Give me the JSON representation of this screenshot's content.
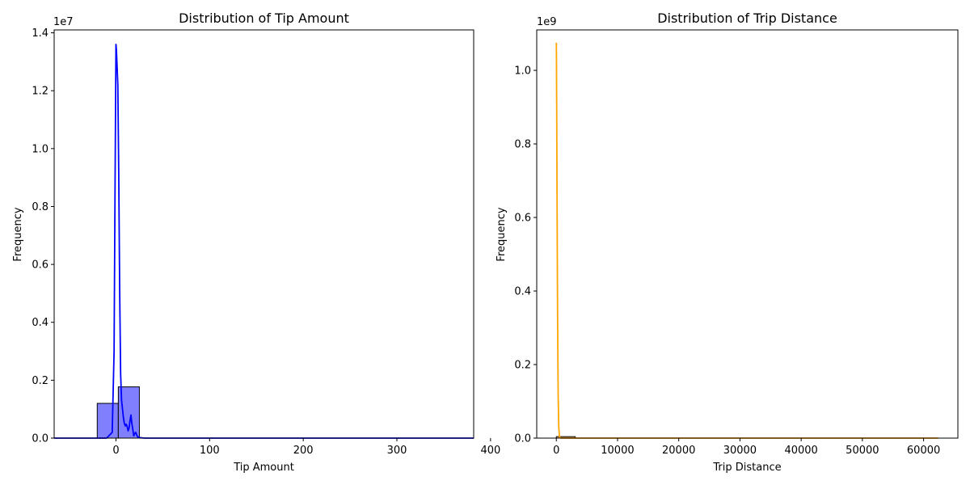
{
  "chart_data": [
    {
      "type": "histogram+kde",
      "title": "Distribution of Tip Amount",
      "xlabel": "Tip Amount",
      "ylabel": "Frequency",
      "offset_label": "1e7",
      "y_scale": 10000000,
      "xlim": [
        -66,
        382
      ],
      "ylim": [
        0,
        14100000
      ],
      "x_ticks": [
        0,
        100,
        200,
        300,
        400
      ],
      "x_tick_labels": [
        "0",
        "100",
        "200",
        "300",
        "400"
      ],
      "y_ticks": [
        0,
        2000000,
        4000000,
        6000000,
        8000000,
        10000000,
        12000000,
        14000000
      ],
      "y_tick_labels": [
        "0.0",
        "0.2",
        "0.4",
        "0.6",
        "0.8",
        "1.0",
        "1.2",
        "1.4"
      ],
      "colors": {
        "bar_fill": "#8080ff",
        "bar_edge": "#000000",
        "kde": "#0000ff"
      },
      "bars": [
        {
          "x0": -66,
          "x1": -20,
          "value": 0
        },
        {
          "x0": -20,
          "x1": 2.5,
          "value": 1200000
        },
        {
          "x0": 2.5,
          "x1": 25,
          "value": 1770000
        },
        {
          "x0": 25,
          "x1": 382,
          "value": 0
        }
      ],
      "kde": {
        "x": [
          -66,
          -10,
          -4,
          -2,
          -1,
          0,
          0.5,
          1,
          1.5,
          2,
          3,
          4,
          5,
          6,
          7,
          8,
          9,
          10,
          11,
          12,
          13,
          14,
          15,
          16,
          17,
          18,
          19,
          20,
          21,
          22,
          23,
          25,
          30,
          40,
          100,
          200,
          300,
          382
        ],
        "y": [
          0,
          0,
          200000,
          3000000,
          8500000,
          13600000,
          13400000,
          13000000,
          12600000,
          12200000,
          9000000,
          5000000,
          2200000,
          1300000,
          1000000,
          700000,
          500000,
          420000,
          480000,
          400000,
          250000,
          350000,
          600000,
          800000,
          500000,
          300000,
          80000,
          150000,
          200000,
          120000,
          50000,
          20000,
          0,
          0,
          0,
          0,
          0,
          0
        ]
      }
    },
    {
      "type": "histogram+kde",
      "title": "Distribution of Trip Distance",
      "xlabel": "Trip Distance",
      "ylabel": "Frequency",
      "offset_label": "1e9",
      "y_scale": 1000000000,
      "xlim": [
        -3200,
        65600
      ],
      "ylim": [
        0,
        1110000000
      ],
      "x_ticks": [
        0,
        10000,
        20000,
        30000,
        40000,
        50000,
        60000
      ],
      "x_tick_labels": [
        "0",
        "10000",
        "20000",
        "30000",
        "40000",
        "50000",
        "60000"
      ],
      "y_ticks": [
        0,
        200000000,
        400000000,
        600000000,
        800000000,
        1000000000
      ],
      "y_tick_labels": [
        "0.0",
        "0.2",
        "0.4",
        "0.6",
        "0.8",
        "1.0"
      ],
      "colors": {
        "bar_fill": "#ffc080",
        "bar_edge": "#000000",
        "kde": "#ffa500"
      },
      "bars": [
        {
          "x0": 0,
          "x1": 3100,
          "value": 4000000
        },
        {
          "x0": 3100,
          "x1": 62400,
          "value": 0
        }
      ],
      "kde": {
        "x": [
          0,
          5,
          20,
          60,
          120,
          200,
          300,
          400,
          500,
          600,
          800,
          1000,
          2000,
          5000,
          10000,
          20000,
          30000,
          40000,
          50000,
          60000,
          62400
        ],
        "y": [
          1075000000,
          1070000000,
          1040000000,
          900000000,
          650000000,
          350000000,
          120000000,
          30000000,
          6000000,
          1000000,
          0,
          0,
          0,
          0,
          0,
          0,
          0,
          0,
          0,
          0,
          0
        ]
      }
    }
  ]
}
